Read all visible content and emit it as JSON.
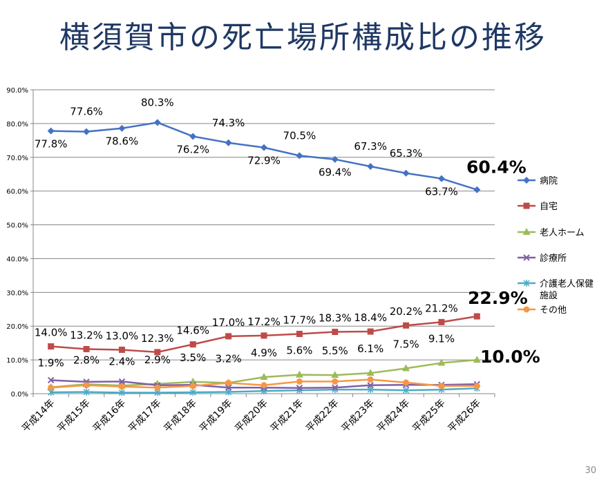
{
  "page": {
    "title": "横須賀市の死亡場所構成比の推移",
    "page_number": "30"
  },
  "chart_data": {
    "type": "line",
    "title": "横須賀市の死亡場所構成比の推移",
    "categories": [
      "平成14年",
      "平成15年",
      "平成16年",
      "平成17年",
      "平成18年",
      "平成19年",
      "平成20年",
      "平成21年",
      "平成22年",
      "平成23年",
      "平成24年",
      "平成25年",
      "平成26年"
    ],
    "ylim": [
      0,
      90
    ],
    "y_tick_labels": [
      "0.0%",
      "10.0%",
      "20.0%",
      "30.0%",
      "40.0%",
      "50.0%",
      "60.0%",
      "70.0%",
      "80.0%",
      "90.0%"
    ],
    "grid": true,
    "legend_position": "right",
    "series": [
      {
        "name": "病院",
        "color": "#4472c4",
        "marker": "diamond",
        "values": [
          77.8,
          77.6,
          78.6,
          80.3,
          76.2,
          74.3,
          72.9,
          70.5,
          69.4,
          67.3,
          65.3,
          63.7,
          60.4
        ],
        "labels": [
          "77.8%",
          "77.6%",
          "78.6%",
          "80.3%",
          "76.2%",
          "74.3%",
          "72.9%",
          "70.5%",
          "69.4%",
          "67.3%",
          "65.3%",
          "63.7%",
          "60.4%"
        ]
      },
      {
        "name": "自宅",
        "color": "#be4b48",
        "marker": "square",
        "values": [
          14.0,
          13.2,
          13.0,
          12.3,
          14.6,
          17.0,
          17.2,
          17.7,
          18.3,
          18.4,
          20.2,
          21.2,
          22.9
        ],
        "labels": [
          "14.0%",
          "13.2%",
          "13.0%",
          "12.3%",
          "14.6%",
          "17.0%",
          "17.2%",
          "17.7%",
          "18.3%",
          "18.4%",
          "20.2%",
          "21.2%",
          "22.9%"
        ]
      },
      {
        "name": "老人ホーム",
        "color": "#9bbb59",
        "marker": "triangle",
        "values": [
          1.9,
          2.8,
          2.4,
          2.9,
          3.5,
          3.2,
          4.9,
          5.6,
          5.5,
          6.1,
          7.5,
          9.1,
          10.0
        ],
        "labels": [
          "1.9%",
          "2.8%",
          "2.4%",
          "2.9%",
          "3.5%",
          "3.2%",
          "4.9%",
          "5.6%",
          "5.5%",
          "6.1%",
          "7.5%",
          "9.1%",
          "10.0%"
        ]
      },
      {
        "name": "診療所",
        "color": "#7f5fa6",
        "marker": "x",
        "values": [
          4.0,
          3.5,
          3.6,
          2.5,
          2.6,
          1.8,
          1.8,
          1.7,
          1.8,
          2.5,
          2.6,
          2.6,
          2.8
        ]
      },
      {
        "name": "介護老人保健施設",
        "color": "#4bacc6",
        "marker": "star",
        "values": [
          0.4,
          0.5,
          0.3,
          0.3,
          0.4,
          0.5,
          0.8,
          1.0,
          1.2,
          1.2,
          1.0,
          1.2,
          1.6
        ]
      },
      {
        "name": "その他",
        "color": "#f79646",
        "marker": "circle",
        "values": [
          1.8,
          2.5,
          2.1,
          1.8,
          2.3,
          3.2,
          2.5,
          3.6,
          3.6,
          4.2,
          3.3,
          2.3,
          2.3
        ]
      }
    ]
  }
}
